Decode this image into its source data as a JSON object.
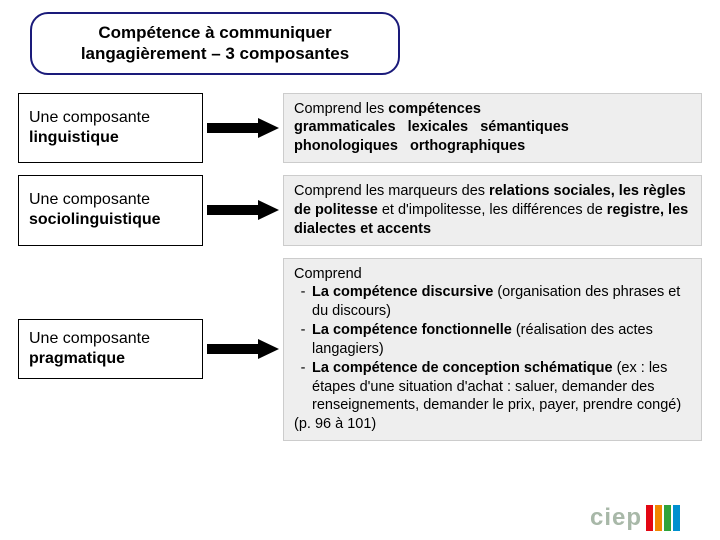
{
  "title": {
    "line1": "Compétence à communiquer",
    "line2": "langagièrement – 3 composantes"
  },
  "arrow": {
    "fill": "#000000"
  },
  "components": [
    {
      "label_line1": "Une composante",
      "label_line2": "linguistique",
      "desc_html": "Comprend les <b>compétences<br>grammaticales&nbsp;&nbsp;&nbsp;lexicales&nbsp;&nbsp;&nbsp;sémantiques<br>phonologiques&nbsp;&nbsp;&nbsp;orthographiques</b>"
    },
    {
      "label_line1": "Une composante",
      "label_line2": "sociolinguistique",
      "desc_html": "Comprend les marqueurs des <b>relations sociales, les règles de politesse</b> et d'impolitesse, les différences de <b>registre, les dialectes et accents</b>"
    },
    {
      "label_line1": "Une composante",
      "label_line2": "pragmatique",
      "desc_html": "Comprend<div class='li'><span class='dash'>-</span><span class='txt'><b>La compétence discursive</b> (organisation des phrases et du discours)</span></div><div class='li'><span class='dash'>-</span><span class='txt'><b>La compétence fonctionnelle</b> (réalisation des actes langagiers)</span></div><div class='li'><span class='dash'>-</span><span class='txt'><b>La compétence de conception schématique</b> (ex : les étapes d'une situation d'achat : saluer, demander des renseignements, demander le prix, payer, prendre congé)</span></div>(p. 96 à 101)"
    }
  ],
  "desc_box": {
    "background": "#eeeeee"
  },
  "logo": {
    "text": "ciep",
    "text_color": "#a8b8a8",
    "bars": [
      "#e30613",
      "#f18700",
      "#2fa33b",
      "#0090d0"
    ]
  }
}
